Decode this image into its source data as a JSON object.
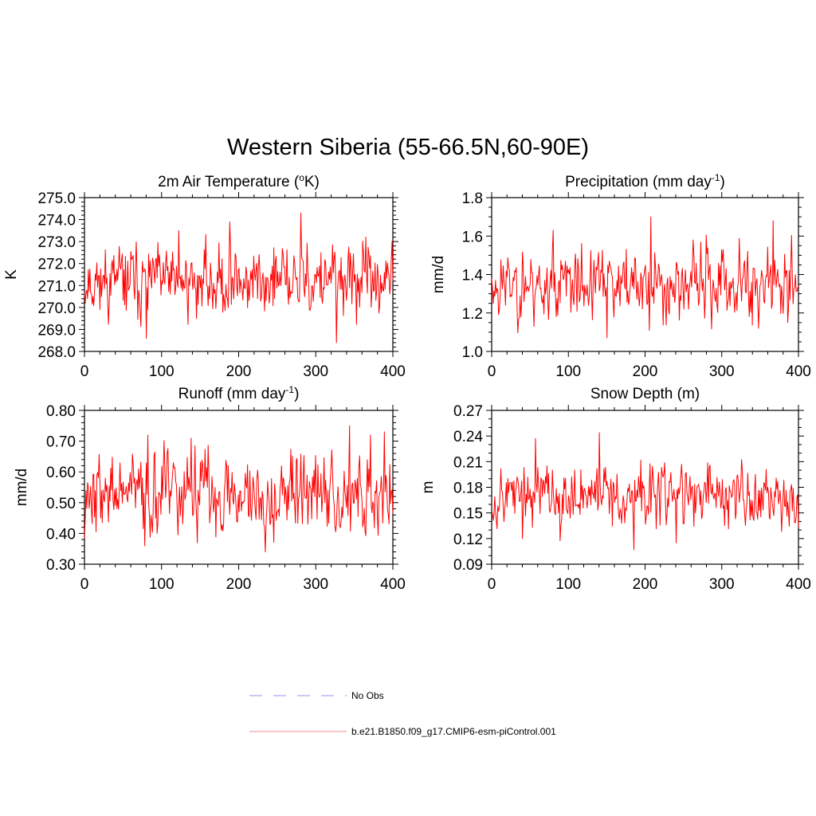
{
  "figure": {
    "title": "Western Siberia (55-66.5N,60-90E)"
  },
  "legend": {
    "items": [
      {
        "label": "No Obs",
        "color": "#a9a9f5",
        "style": "dashed"
      },
      {
        "label": "b.e21.B1850.f09_g17.CMIP6-esm-piControl.001",
        "color": "#f5a0a0",
        "style": "solid"
      }
    ]
  },
  "chart_data": [
    {
      "type": "line",
      "title": "2m Air Temperature (",
      "title_sup": "o",
      "title_after": "K)",
      "ylabel": "K",
      "xlabel": "",
      "xlim": [
        0,
        400
      ],
      "ylim": [
        268.0,
        275.0
      ],
      "xticks": [
        0,
        100,
        200,
        300,
        400
      ],
      "xtick_labels": [
        "0",
        "100",
        "200",
        "300",
        "400"
      ],
      "yticks": [
        268.0,
        269.0,
        270.0,
        271.0,
        272.0,
        273.0,
        274.0,
        275.0
      ],
      "ytick_labels": [
        "268.0",
        "269.0",
        "270.0",
        "271.0",
        "272.0",
        "273.0",
        "274.0",
        "275.0"
      ],
      "minor_per_major": 5,
      "series": [
        {
          "name": "b.e21.B1850.f09_g17.CMIP6-esm-piControl.001",
          "color": "#ff0000",
          "stats": {
            "n": 400,
            "mean": 271.2,
            "sd": 0.75,
            "min": 268.4,
            "max": 274.3,
            "seed": 11
          },
          "extremes": [
            [
              280,
              274.3
            ],
            [
              326,
              268.4
            ],
            [
              188,
              273.9
            ],
            [
              80,
              268.6
            ],
            [
              122,
              273.5
            ]
          ]
        }
      ]
    },
    {
      "type": "line",
      "title": "Precipitation (mm day",
      "title_sup": "-1",
      "title_after": ")",
      "ylabel": "mm/d",
      "xlabel": "",
      "xlim": [
        0,
        400
      ],
      "ylim": [
        1.0,
        1.8
      ],
      "xticks": [
        0,
        100,
        200,
        300,
        400
      ],
      "xtick_labels": [
        "0",
        "100",
        "200",
        "300",
        "400"
      ],
      "yticks": [
        1.0,
        1.2,
        1.4,
        1.6,
        1.8
      ],
      "ytick_labels": [
        "1.0",
        "1.2",
        "1.4",
        "1.6",
        "1.8"
      ],
      "minor_per_major": 4,
      "series": [
        {
          "name": "b.e21.B1850.f09_g17.CMIP6-esm-piControl.001",
          "color": "#ff0000",
          "stats": {
            "n": 400,
            "mean": 1.35,
            "sd": 0.09,
            "min": 1.07,
            "max": 1.7,
            "seed": 23
          },
          "extremes": [
            [
              207,
              1.7
            ],
            [
              366,
              1.68
            ],
            [
              150,
              1.07
            ],
            [
              80,
              1.63
            ],
            [
              205,
              1.11
            ]
          ]
        }
      ]
    },
    {
      "type": "line",
      "title": "Runoff (mm day",
      "title_sup": "-1",
      "title_after": ")",
      "ylabel": "mm/d",
      "xlabel": "",
      "xlim": [
        0,
        400
      ],
      "ylim": [
        0.3,
        0.8
      ],
      "xticks": [
        0,
        100,
        200,
        300,
        400
      ],
      "xtick_labels": [
        "0",
        "100",
        "200",
        "300",
        "400"
      ],
      "yticks": [
        0.3,
        0.4,
        0.5,
        0.6,
        0.7,
        0.8
      ],
      "ytick_labels": [
        "0.30",
        "0.40",
        "0.50",
        "0.60",
        "0.70",
        "0.80"
      ],
      "minor_per_major": 5,
      "series": [
        {
          "name": "b.e21.B1850.f09_g17.CMIP6-esm-piControl.001",
          "color": "#ff0000",
          "stats": {
            "n": 400,
            "mean": 0.53,
            "sd": 0.065,
            "min": 0.34,
            "max": 0.75,
            "seed": 37
          },
          "extremes": [
            [
              343,
              0.75
            ],
            [
              234,
              0.34
            ],
            [
              82,
              0.72
            ],
            [
              370,
              0.72
            ],
            [
              138,
              0.71
            ]
          ]
        }
      ]
    },
    {
      "type": "line",
      "title": "Snow Depth (m)",
      "title_sup": "",
      "title_after": "",
      "ylabel": "m",
      "xlabel": "",
      "xlim": [
        0,
        400
      ],
      "ylim": [
        0.09,
        0.27
      ],
      "xticks": [
        0,
        100,
        200,
        300,
        400
      ],
      "xtick_labels": [
        "0",
        "100",
        "200",
        "300",
        "400"
      ],
      "yticks": [
        0.09,
        0.12,
        0.15,
        0.18,
        0.21,
        0.24,
        0.27
      ],
      "ytick_labels": [
        "0.09",
        "0.12",
        "0.15",
        "0.18",
        "0.21",
        "0.24",
        "0.27"
      ],
      "minor_per_major": 3,
      "series": [
        {
          "name": "b.e21.B1850.f09_g17.CMIP6-esm-piControl.001",
          "color": "#ff0000",
          "stats": {
            "n": 400,
            "mean": 0.171,
            "sd": 0.017,
            "min": 0.107,
            "max": 0.244,
            "seed": 53
          },
          "extremes": [
            [
              140,
              0.244
            ],
            [
              57,
              0.237
            ],
            [
              185,
              0.107
            ],
            [
              40,
              0.12
            ],
            [
              240,
              0.115
            ]
          ]
        }
      ]
    }
  ]
}
